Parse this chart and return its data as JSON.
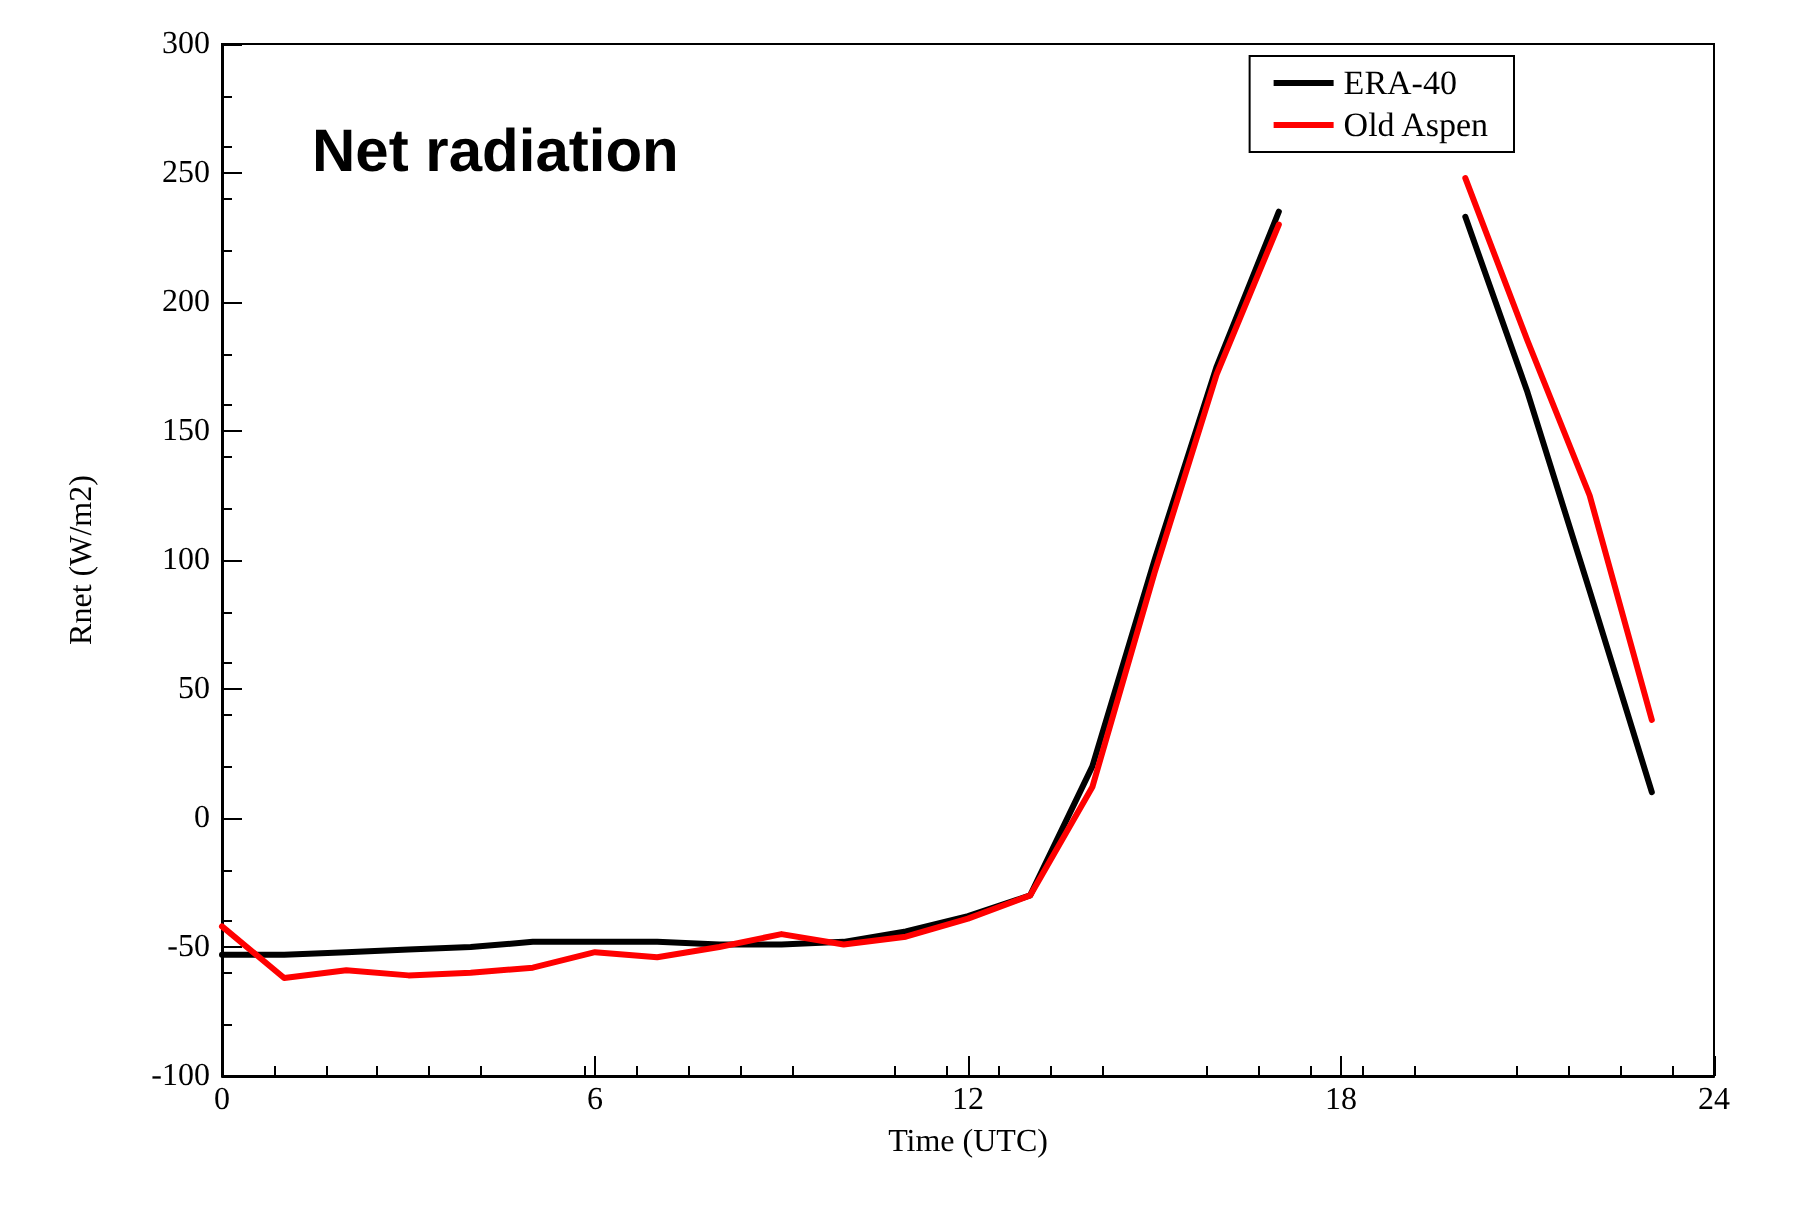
{
  "chart_data": {
    "type": "line",
    "title": "Net radiation",
    "xlabel": "Time (UTC)",
    "ylabel": "Rnet (W/m2)",
    "x": [
      0,
      1,
      2,
      3,
      4,
      5,
      6,
      7,
      8,
      9,
      10,
      11,
      12,
      13,
      14,
      15,
      16,
      17,
      18,
      19,
      20,
      21,
      22,
      23
    ],
    "series": [
      {
        "name": "ERA-40",
        "color": "#000000",
        "values": [
          -53,
          -53,
          -52,
          -51,
          -50,
          -48,
          -48,
          -48,
          -49,
          -49,
          -48,
          -44,
          -38,
          -30,
          20,
          100,
          175,
          235,
          null,
          null,
          233,
          165,
          88,
          10
        ]
      },
      {
        "name": "Old Aspen",
        "color": "#ff0000",
        "values": [
          -42,
          -62,
          -59,
          -61,
          -60,
          -58,
          -52,
          -54,
          -50,
          -45,
          -49,
          -46,
          -39,
          -30,
          12,
          95,
          172,
          230,
          null,
          null,
          248,
          185,
          125,
          38
        ]
      }
    ],
    "xlim": [
      0,
      24
    ],
    "xticks": [
      0,
      6,
      12,
      18,
      24
    ],
    "ylim": [
      -100,
      300
    ],
    "yticks": [
      -100,
      -50,
      0,
      50,
      100,
      150,
      200,
      250,
      300
    ],
    "grid": false,
    "legend": "top right",
    "marker": "none",
    "line_style": "solid"
  }
}
